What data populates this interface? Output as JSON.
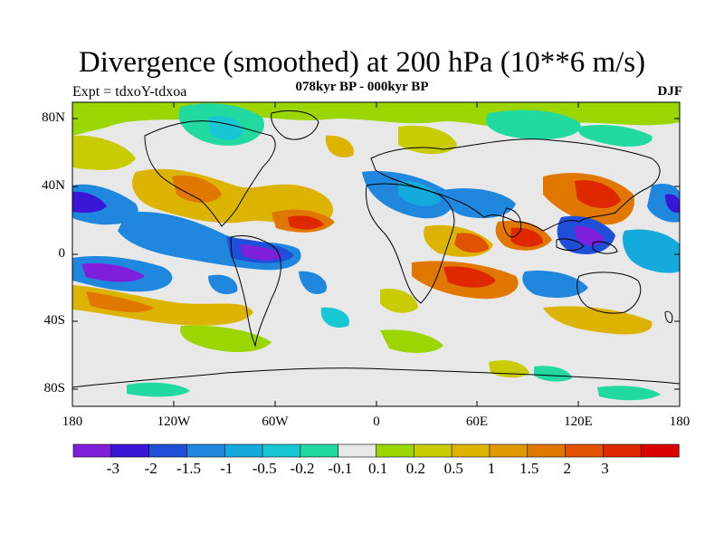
{
  "title": "Divergence (smoothed) at 200 hPa (10**6 m/s)",
  "left_subtitle": "Expt = tdxoY-tdxoa",
  "center_subtitle": "078kyr BP - 000kyr BP",
  "right_subtitle": "DJF",
  "lat_labels": [
    "80N",
    "40N",
    "0",
    "40S",
    "80S"
  ],
  "lon_labels": [
    "180",
    "120W",
    "60W",
    "0",
    "60E",
    "120E",
    "180"
  ],
  "colorbar": {
    "colors": [
      "#7f1fdc",
      "#3a17d6",
      "#1f4fd8",
      "#1f88de",
      "#15aadc",
      "#17c8d4",
      "#22d9a0",
      "#e8e8e8",
      "#9bd600",
      "#c8cc00",
      "#dcb400",
      "#df9a00",
      "#e07800",
      "#e05200",
      "#df2800",
      "#d80000"
    ],
    "labels": [
      "-3",
      "-2",
      "-1.5",
      "-1",
      "-0.5",
      "-0.2",
      "-0.1",
      "0.1",
      "0.2",
      "0.5",
      "1",
      "1.5",
      "2",
      "3"
    ]
  }
}
